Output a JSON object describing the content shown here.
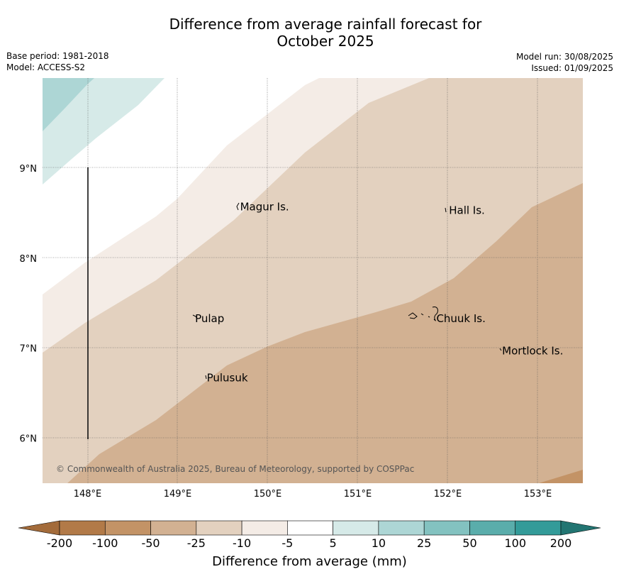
{
  "title_line1": "Difference from average rainfall forecast for",
  "title_line2": "October 2025",
  "meta_left": {
    "base_period": "Base period: 1981-2018",
    "model": "Model: ACCESS-S2"
  },
  "meta_right": {
    "model_run": "Model run: 30/08/2025",
    "issued": "Issued: 01/09/2025"
  },
  "axes": {
    "lon_labels": [
      "148°E",
      "149°E",
      "150°E",
      "151°E",
      "152°E",
      "153°E"
    ],
    "lat_labels": [
      "9°N",
      "8°N",
      "7°N",
      "6°N"
    ],
    "lon_range": [
      147.5,
      153.5
    ],
    "lat_range": [
      5.5,
      10.0
    ]
  },
  "places": [
    {
      "name": "Magur Is.",
      "lon": 149.67,
      "lat": 8.57
    },
    {
      "name": "Hall Is.",
      "lon": 151.99,
      "lat": 8.53
    },
    {
      "name": "Pulap",
      "lon": 149.17,
      "lat": 7.33
    },
    {
      "name": "Chuuk Is.",
      "lon": 151.85,
      "lat": 7.33
    },
    {
      "name": "Mortlock Is.",
      "lon": 152.58,
      "lat": 6.97
    },
    {
      "name": "Pulusuk",
      "lon": 149.3,
      "lat": 6.67
    }
  ],
  "copyright": "© Commonwealth of Australia 2025, Bureau of Meteorology, supported by COSPPac",
  "colorbar": {
    "ticks": [
      "-200",
      "-100",
      "-50",
      "-25",
      "-10",
      "-5",
      "5",
      "10",
      "25",
      "50",
      "100",
      "200"
    ],
    "colors": [
      "#a36b3a",
      "#b27a48",
      "#c39366",
      "#d2b192",
      "#e3d1bf",
      "#f4ece6",
      "#ffffff",
      "#d6eae8",
      "#add6d5",
      "#83c2c0",
      "#5aadab",
      "#339b99",
      "#227572"
    ],
    "label": "Difference from average (mm)"
  },
  "chart_data": {
    "type": "heatmap",
    "title": "Difference from average rainfall forecast for October 2025",
    "xlabel": "",
    "ylabel": "",
    "xlim": [
      147.5,
      153.5
    ],
    "ylim": [
      5.5,
      10.0
    ],
    "units": "mm",
    "levels": [
      -200,
      -100,
      -50,
      -25,
      -10,
      -5,
      5,
      10,
      25,
      50,
      100,
      200
    ],
    "regions_description_by_level": [
      {
        "range": "-50 to -25",
        "area": "south-east"
      },
      {
        "range": "-25 to -10",
        "area": "central"
      },
      {
        "range": "-10 to -5",
        "area": "north-west band"
      },
      {
        "range": "-5 to 5",
        "area": "far north-west"
      },
      {
        "range": "5 to 10",
        "area": "north-west corner"
      },
      {
        "range": "10 to 25",
        "area": "extreme north-west corner"
      }
    ]
  }
}
